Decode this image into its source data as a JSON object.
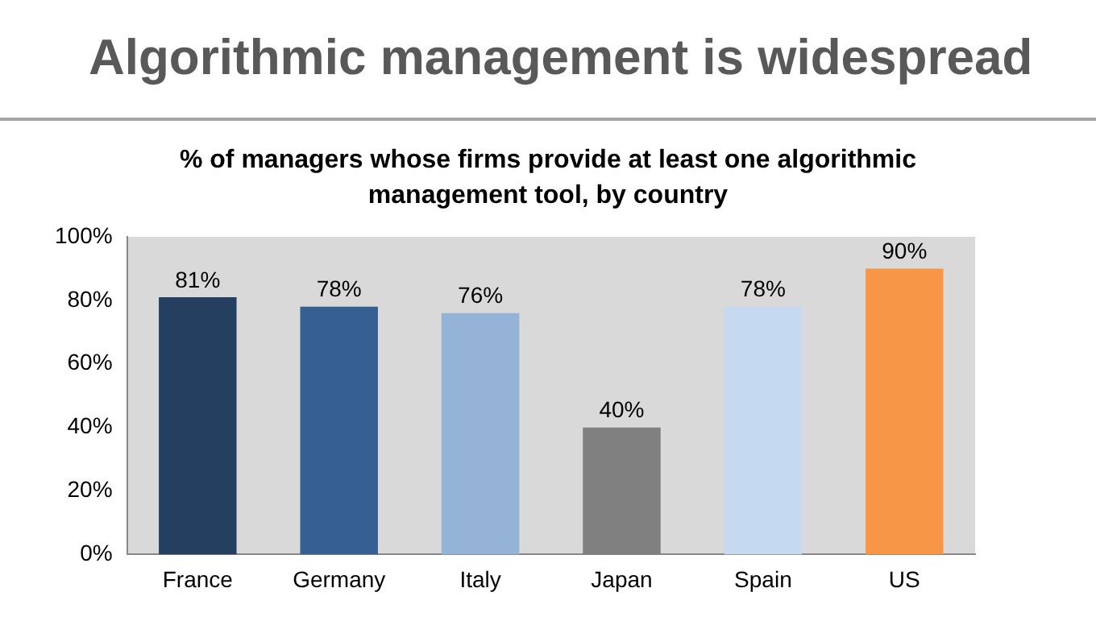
{
  "chart_data": {
    "type": "bar",
    "title": "Algorithmic management is widespread",
    "subtitle": "% of managers whose firms provide at least one algorithmic management tool, by country",
    "categories": [
      "France",
      "Germany",
      "Italy",
      "Japan",
      "Spain",
      "US"
    ],
    "values": [
      81,
      78,
      76,
      40,
      78,
      90
    ],
    "colors": [
      "#243f60",
      "#366092",
      "#95b3d7",
      "#808080",
      "#c5d9f1",
      "#f79646"
    ],
    "value_labels": [
      "81%",
      "78%",
      "76%",
      "40%",
      "78%",
      "90%"
    ],
    "ylim": [
      0,
      100
    ],
    "yticks": [
      {
        "value": 0,
        "label": "0%"
      },
      {
        "value": 20,
        "label": "20%"
      },
      {
        "value": 40,
        "label": "40%"
      },
      {
        "value": 60,
        "label": "60%"
      },
      {
        "value": 80,
        "label": "80%"
      },
      {
        "value": 100,
        "label": "100%"
      }
    ],
    "grid": false,
    "legend": false
  }
}
